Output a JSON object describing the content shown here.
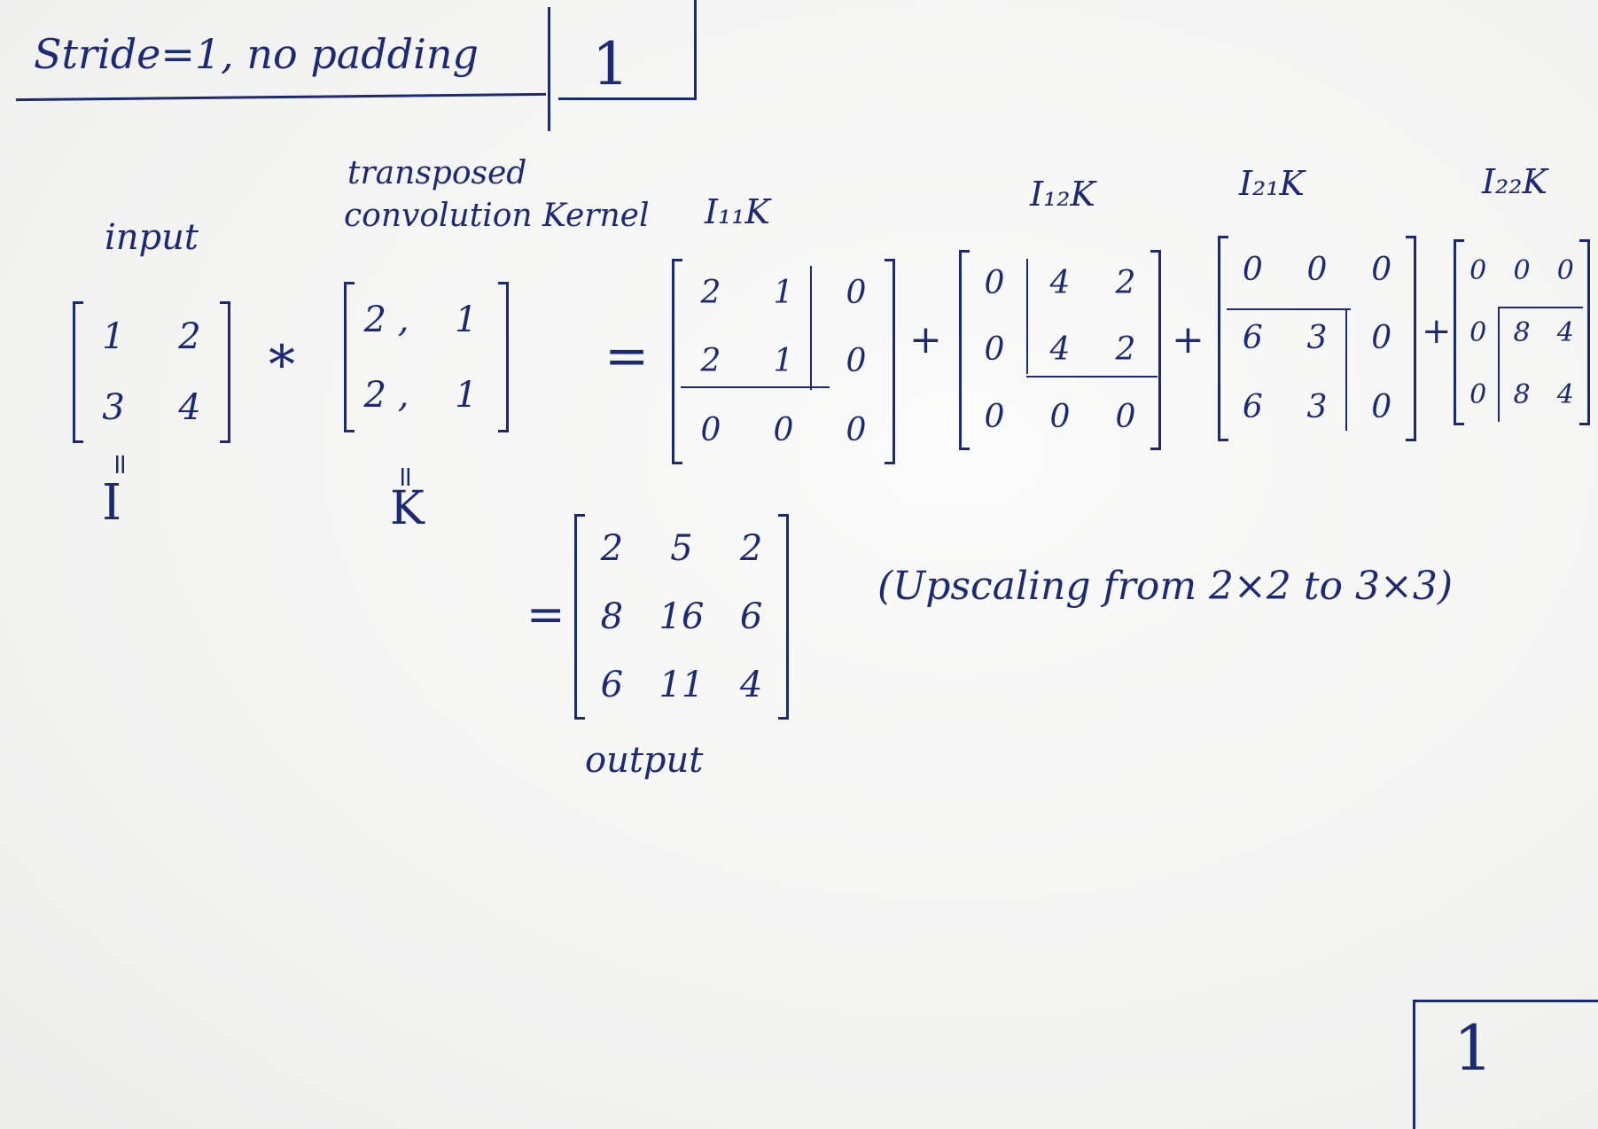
{
  "heading": {
    "title": "Stride=1, no padding",
    "page_number": "1"
  },
  "labels": {
    "input": "input",
    "kernel_line1": "transposed",
    "kernel_line2": "convolution Kernel",
    "input_symbol": "I",
    "kernel_symbol": "K",
    "output": "output",
    "note": "(Upscaling from 2×2 to 3×3)"
  },
  "term_labels": [
    "I₁₁K",
    "I₁₂K",
    "I₂₁K",
    "I₂₂K"
  ],
  "operators": {
    "convolve": "*",
    "equals": "=",
    "plus": "+"
  },
  "input_matrix": [
    [
      "1",
      "2"
    ],
    [
      "3",
      "4"
    ]
  ],
  "kernel_matrix": [
    [
      "2 ,",
      "1"
    ],
    [
      "2 ,",
      "1"
    ]
  ],
  "terms": [
    [
      [
        "2",
        "1",
        "0"
      ],
      [
        "2",
        "1",
        "0"
      ],
      [
        "0",
        "0",
        "0"
      ]
    ],
    [
      [
        "0",
        "4",
        "2"
      ],
      [
        "0",
        "4",
        "2"
      ],
      [
        "0",
        "0",
        "0"
      ]
    ],
    [
      [
        "0",
        "0",
        "0"
      ],
      [
        "6",
        "3",
        "0"
      ],
      [
        "6",
        "3",
        "0"
      ]
    ],
    [
      [
        "0",
        "0",
        "0"
      ],
      [
        "0",
        "8",
        "4"
      ],
      [
        "0",
        "8",
        "4"
      ]
    ]
  ],
  "output_matrix": [
    [
      "2",
      "5",
      "2"
    ],
    [
      "8",
      "16",
      "6"
    ],
    [
      "6",
      "11",
      "4"
    ]
  ],
  "footer": {
    "page_number": "1"
  }
}
